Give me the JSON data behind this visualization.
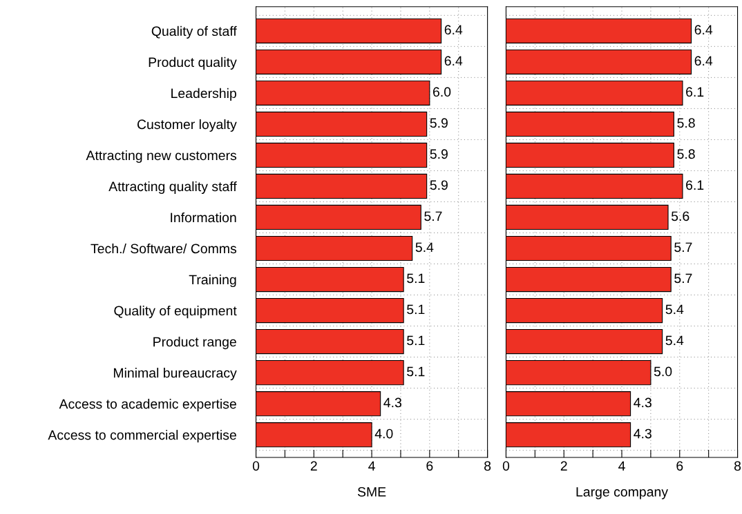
{
  "chart_data": [
    {
      "type": "bar",
      "orientation": "horizontal",
      "xlabel": "SME",
      "categories": [
        "Quality of staff",
        "Product quality",
        "Leadership",
        "Customer loyalty",
        "Attracting new customers",
        "Attracting quality staff",
        "Information",
        "Tech./ Software/ Comms",
        "Training",
        "Quality of equipment",
        "Product range",
        "Minimal bureaucracy",
        "Access to academic expertise",
        "Access to commercial expertise"
      ],
      "values": [
        6.4,
        6.4,
        6.0,
        5.9,
        5.9,
        5.9,
        5.7,
        5.4,
        5.1,
        5.1,
        5.1,
        5.1,
        4.3,
        4.0
      ],
      "value_labels": [
        "6.4",
        "6.4",
        "6.0",
        "5.9",
        "5.9",
        "5.9",
        "5.7",
        "5.4",
        "5.1",
        "5.1",
        "5.1",
        "5.1",
        "4.3",
        "4.0"
      ],
      "color": "#ee3124",
      "xlim": [
        0,
        8
      ],
      "xticks": [
        0,
        {
          "value": 1,
          "label": null
        },
        2,
        {
          "value": 3,
          "label": null
        },
        4,
        {
          "value": 5,
          "label": null
        },
        6,
        {
          "value": 7,
          "label": null
        },
        8
      ],
      "grid": true
    },
    {
      "type": "bar",
      "orientation": "horizontal",
      "xlabel": "Large company",
      "categories": [
        null,
        null,
        null,
        null,
        null,
        null,
        null,
        null,
        null,
        null,
        null,
        null,
        null,
        null
      ],
      "values": [
        6.4,
        6.4,
        6.1,
        5.8,
        5.8,
        6.1,
        5.6,
        5.7,
        5.7,
        5.4,
        5.4,
        5.0,
        4.3,
        4.3
      ],
      "value_labels": [
        "6.4",
        "6.4",
        "6.1",
        "5.8",
        "5.8",
        "6.1",
        "5.6",
        "5.7",
        "5.7",
        "5.4",
        "5.4",
        "5.0",
        "4.3",
        "4.3"
      ],
      "color": "#ee3124",
      "xlim": [
        0,
        8
      ],
      "xticks": [
        0,
        {
          "value": 1,
          "label": null
        },
        2,
        {
          "value": 3,
          "label": null
        },
        4,
        {
          "value": 5,
          "label": null
        },
        6,
        {
          "value": 7,
          "label": null
        },
        8
      ],
      "grid": true,
      "tick_labels": "x"
    }
  ]
}
